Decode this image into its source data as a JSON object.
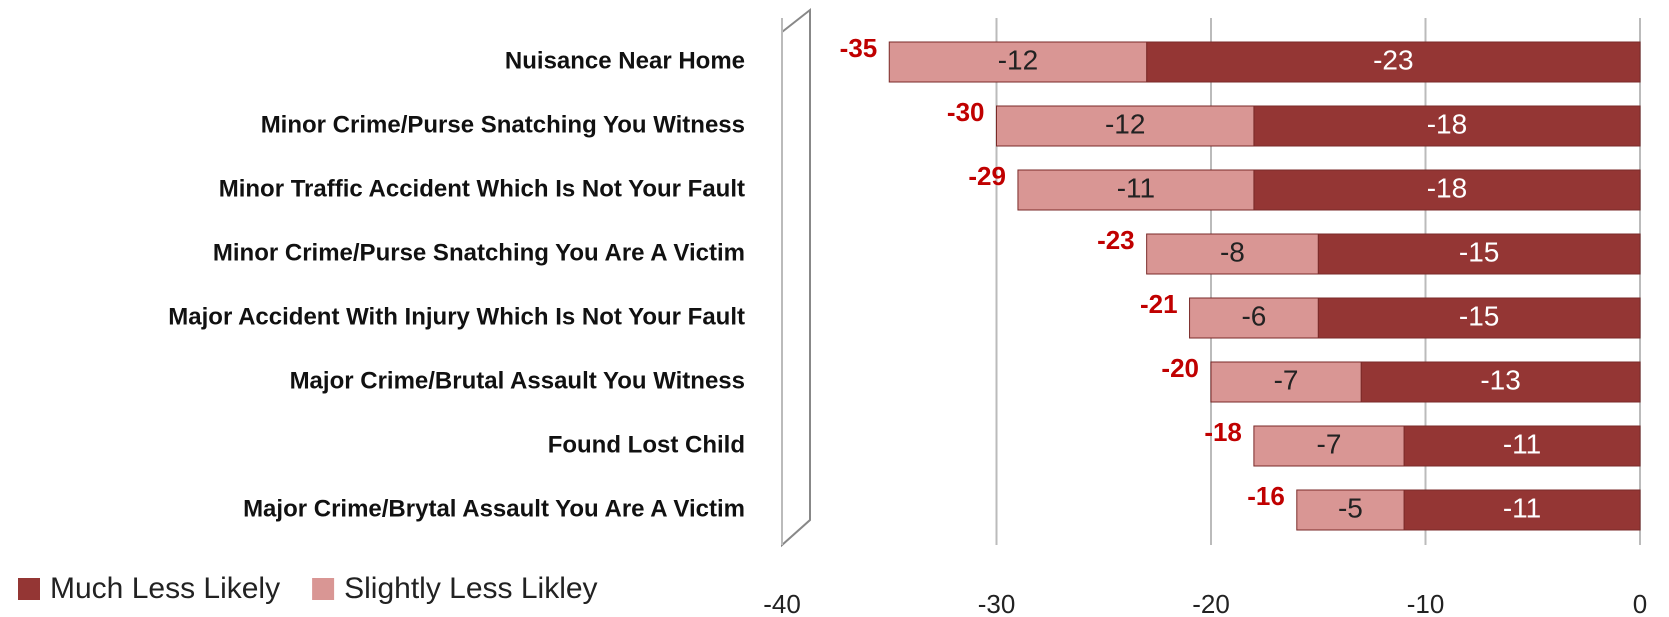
{
  "chart_data": {
    "type": "bar",
    "orientation": "horizontal",
    "stacked": true,
    "categories": [
      "Nuisance Near Home",
      "Minor Crime/Purse Snatching You Witness",
      "Minor Traffic Accident Which Is Not Your Fault",
      "Minor Crime/Purse Snatching You Are A Victim",
      "Major Accident With Injury Which Is Not Your Fault",
      "Major Crime/Brutal Assault You Witness",
      "Found Lost Child",
      "Major Crime/Brytal Assault You Are A Victim"
    ],
    "series": [
      {
        "name": "Much Less Likely",
        "color": "#943634",
        "label_color": "#ffffff",
        "values": [
          -23,
          -18,
          -18,
          -15,
          -15,
          -13,
          -11,
          -11
        ]
      },
      {
        "name": "Slightly Less Likley",
        "color": "#d99694",
        "label_color": "#222222",
        "values": [
          -12,
          -12,
          -11,
          -8,
          -6,
          -7,
          -7,
          -5
        ]
      }
    ],
    "totals": [
      -35,
      -30,
      -29,
      -23,
      -21,
      -20,
      -18,
      -16
    ],
    "totals_color": "#c00000",
    "xlim": [
      -40,
      0
    ],
    "xticks": [
      -40,
      -30,
      -20,
      -10,
      0
    ],
    "grid": true,
    "legend": "bottom-left"
  }
}
